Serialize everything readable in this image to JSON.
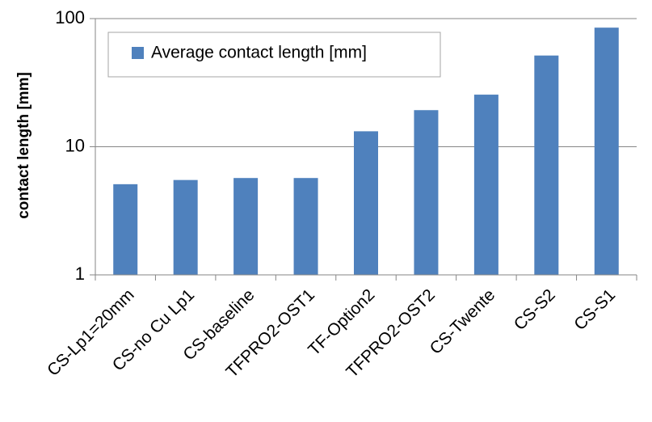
{
  "chart_data": {
    "type": "bar",
    "scale": "log",
    "categories": [
      "CS-Lp1=20mm",
      "CS-no Cu Lp1",
      "CS-baseline",
      "TFPRO2-OST1",
      "TF-Option2",
      "TFPRO2-OST2",
      "CS-Twente",
      "CS-S2",
      "CS-S1"
    ],
    "series": [
      {
        "name": "Average contact length [mm]",
        "color": "#4f81bd",
        "values": [
          5.1,
          5.5,
          5.7,
          5.7,
          13.2,
          19.3,
          25.5,
          51.5,
          85.0
        ]
      }
    ],
    "xlabel": "",
    "ylabel": "contact length [mm]",
    "ylim": [
      1,
      100
    ],
    "yticks": [
      {
        "value": 1,
        "label": "1"
      },
      {
        "value": 10,
        "label": "10"
      },
      {
        "value": 100,
        "label": "100"
      }
    ],
    "grid": true,
    "legend_position": "top-left"
  }
}
